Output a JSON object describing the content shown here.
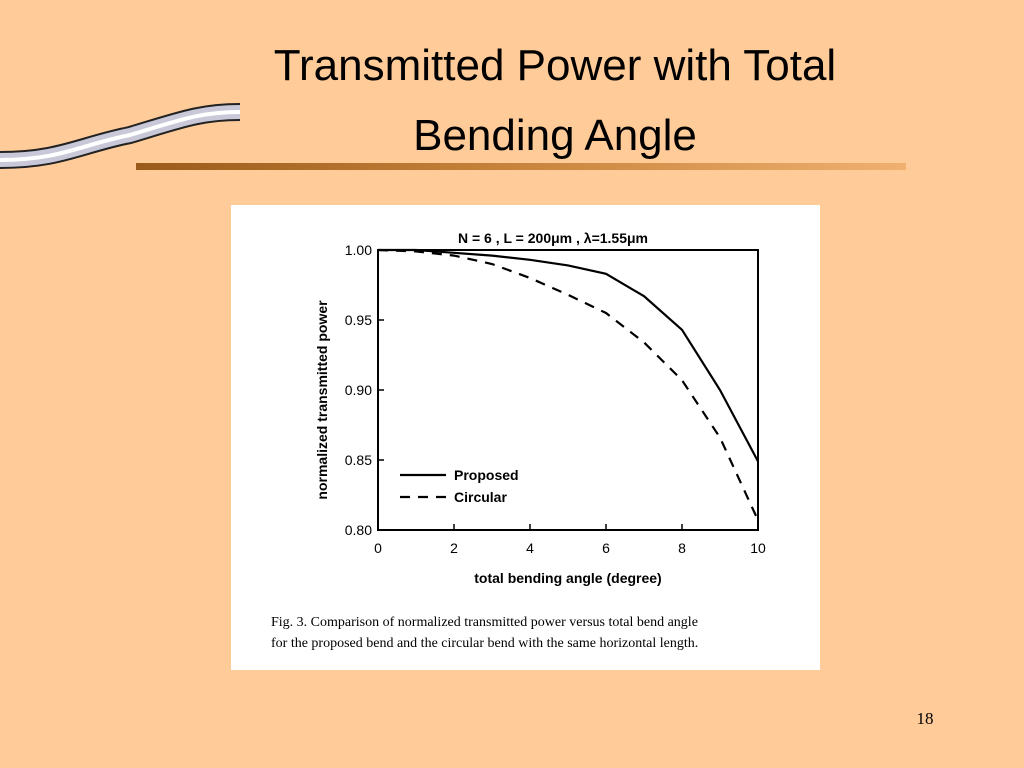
{
  "slide": {
    "title": [
      "Transmitted Power with Total",
      "Bending Angle"
    ],
    "page_number": "18"
  },
  "chart_data": {
    "type": "line",
    "title": "N = 6 , L = 200μm , λ=1.55μm",
    "x_label": "total bending angle (degree)",
    "y_label": "normalized transmitted power",
    "x": [
      0,
      1,
      2,
      3,
      4,
      5,
      6,
      7,
      8,
      9,
      10
    ],
    "series": [
      {
        "name": "Proposed",
        "color": "#000000",
        "dash": "solid",
        "values": [
          1.0,
          1.0,
          0.998,
          0.996,
          0.993,
          0.989,
          0.983,
          0.967,
          0.943,
          0.9,
          0.849
        ]
      },
      {
        "name": "Circular",
        "color": "#000000",
        "dash": "dashed",
        "values": [
          1.0,
          0.999,
          0.996,
          0.99,
          0.98,
          0.968,
          0.955,
          0.934,
          0.907,
          0.866,
          0.807
        ]
      }
    ],
    "xlim": [
      0,
      10
    ],
    "xticks": [
      0,
      2,
      4,
      6,
      8,
      10
    ],
    "ylim": [
      0.8,
      1.0
    ],
    "yticks": [
      {
        "value": 0.8,
        "label": "0.80"
      },
      0.85,
      {
        "value": 0.9,
        "label": "0.90"
      },
      0.95,
      {
        "value": 1.0,
        "label": "1.00"
      }
    ],
    "legend": "lower-left",
    "caption": [
      "Fig. 3.    Comparison of normalized transmitted power versus total bend angle",
      "for the proposed bend and the circular bend with the same horizontal length."
    ]
  }
}
